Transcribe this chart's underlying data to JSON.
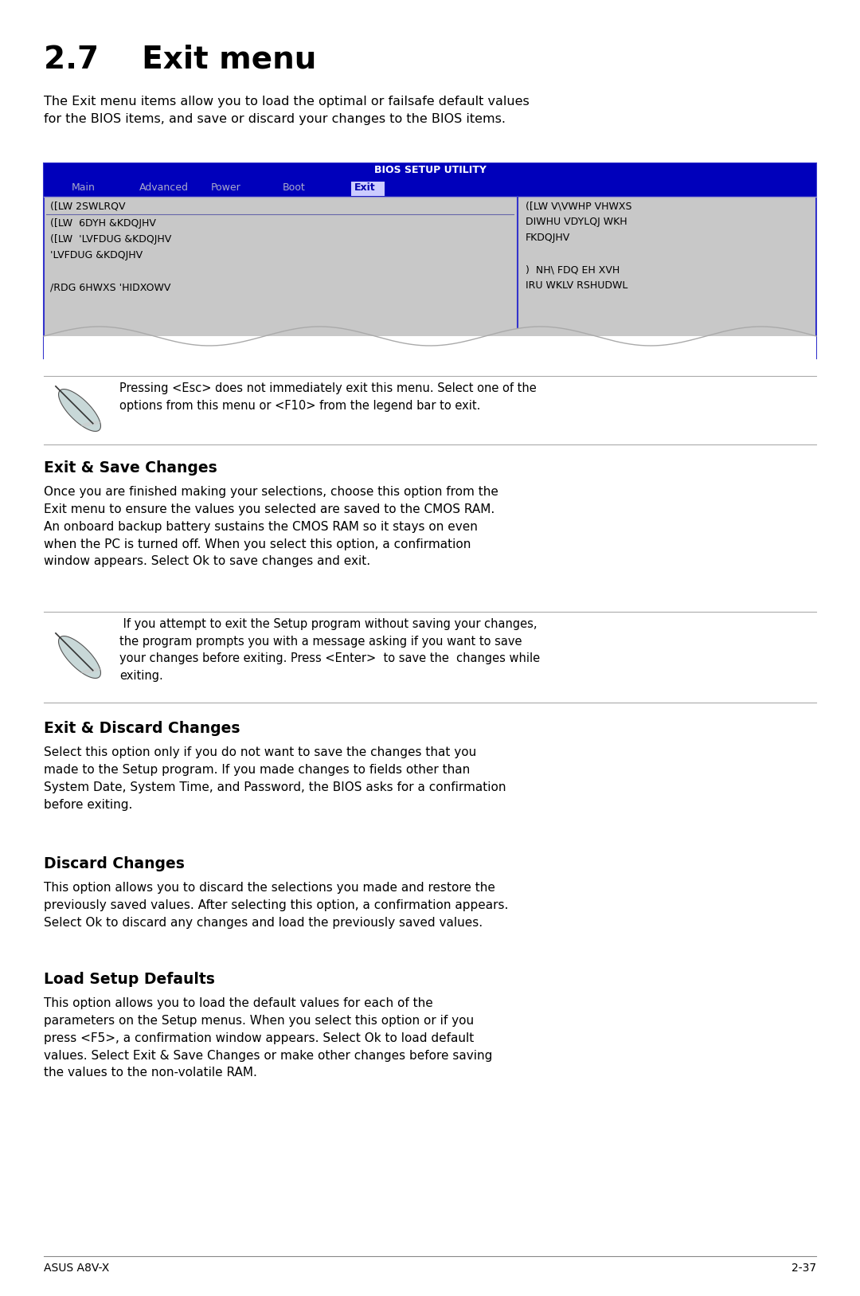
{
  "page_title": "2.7    Exit menu",
  "bg_color": "#ffffff",
  "text_color": "#000000",
  "intro_text": "The Exit menu items allow you to load the optimal or failsafe default values\nfor the BIOS items, and save or discard your changes to the BIOS items.",
  "bios_title": "BIOS SETUP UTILITY",
  "bios_menu_items": [
    "Main",
    "Advanced",
    "Power",
    "Boot",
    "Exit"
  ],
  "bios_left_items": [
    "([LW 2SWLRQV",
    "([LW  6DYH &KDQJHV",
    "([LW  'LVFDUG &KDQJHV",
    "'LVFDUG &KDQJHV",
    "",
    "/RDG 6HWXS 'HIDXOWV"
  ],
  "bios_right_lines": [
    "([LW V\\VWHP VHWXS",
    "DIWHU VDYLQJ WKH",
    "FKDQJHV",
    "",
    ")  NH\\ FDQ EH XVH",
    "IRU WKLV RSHUDWL"
  ],
  "note1_text": "Pressing <Esc> does not immediately exit this menu. Select one of the\noptions from this menu or <F10> from the legend bar to exit.",
  "section1_title": "Exit & Save Changes",
  "section1_text": "Once you are finished making your selections, choose this option from the\nExit menu to ensure the values you selected are saved to the CMOS RAM.\nAn onboard backup battery sustains the CMOS RAM so it stays on even\nwhen the PC is turned off. When you select this option, a confirmation\nwindow appears. Select Ok to save changes and exit.",
  "note2_text": " If you attempt to exit the Setup program without saving your changes,\nthe program prompts you with a message asking if you want to save\nyour changes before exiting. Press <Enter>  to save the  changes while\nexiting.",
  "section2_title": "Exit & Discard Changes",
  "section2_text": "Select this option only if you do not want to save the changes that you\nmade to the Setup program. If you made changes to fields other than\nSystem Date, System Time, and Password, the BIOS asks for a confirmation\nbefore exiting.",
  "section3_title": "Discard Changes",
  "section3_text": "This option allows you to discard the selections you made and restore the\npreviously saved values. After selecting this option, a confirmation appears.\nSelect Ok to discard any changes and load the previously saved values.",
  "section4_title": "Load Setup Defaults",
  "section4_text": "This option allows you to load the default values for each of the\nparameters on the Setup menus. When you select this option or if you\npress <F5>, a confirmation window appears. Select Ok to load default\nvalues. Select Exit & Save Changes or make other changes before saving\nthe values to the non-volatile RAM.",
  "footer_left": "ASUS A8V-X",
  "footer_right": "2-37",
  "bios_bg": "#c8c8c8",
  "bios_header_bg": "#0000bb",
  "bios_header_text": "#ffffff",
  "bios_menu_inactive": "#aaaacc",
  "separator_color": "#aaaaaa",
  "line_color": "#aaaaaa"
}
